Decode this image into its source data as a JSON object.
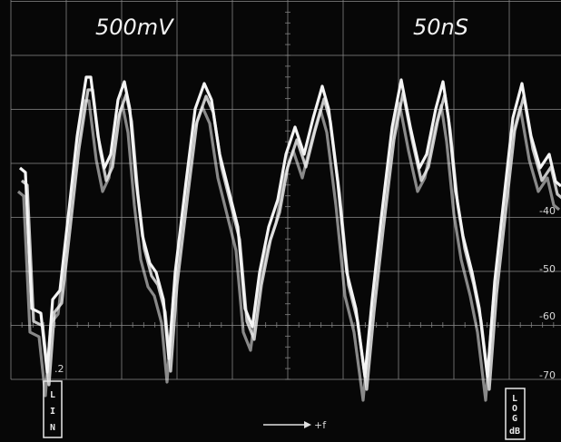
{
  "header": {
    "voltage": "500mV",
    "timebase": "50nS"
  },
  "scale": {
    "left_label": ".2",
    "right_labels": [
      "-40",
      "-50",
      "-60",
      "-70"
    ]
  },
  "mode_left": [
    "L",
    "I",
    "N"
  ],
  "mode_right": [
    "L",
    "O",
    "G",
    "dB"
  ],
  "axis_label": "+f"
}
